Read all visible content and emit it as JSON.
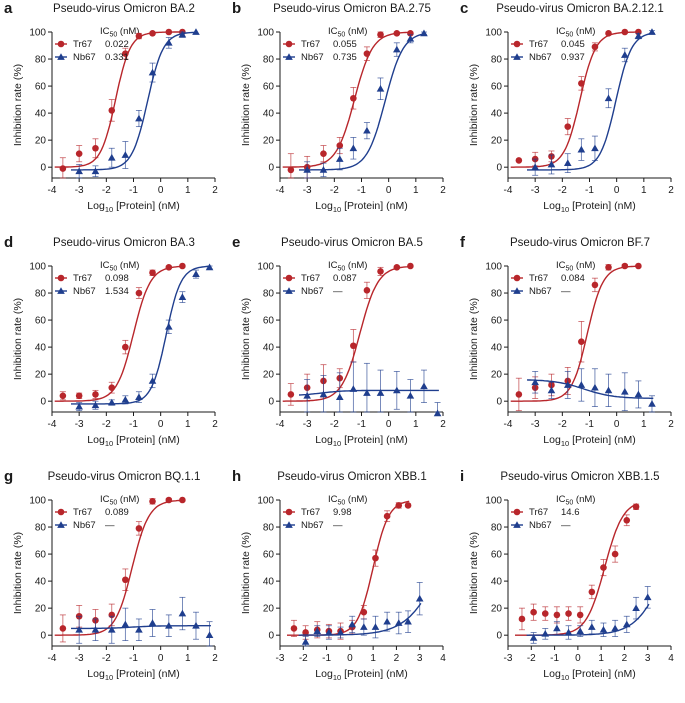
{
  "colors": {
    "tr67": "#b8262b",
    "nb67": "#1f3e8e",
    "axis": "#1a1a1a"
  },
  "chart_data": [
    {
      "letter": "a",
      "type": "scatter",
      "title": "Pseudo-virus Omicron BA.2",
      "xlabel": "Log10 [Protein] (nM)",
      "ylabel": "Inhibition rate (%)",
      "xlim": [
        -4,
        2
      ],
      "ylim": [
        -8,
        100
      ],
      "xticks": [
        -4,
        -3,
        -2,
        -1,
        0,
        1,
        2
      ],
      "yticks": [
        0,
        20,
        40,
        60,
        80,
        100
      ],
      "legend_header": "IC50 (nM)",
      "series": [
        {
          "name": "Tr67",
          "ic50": "0.022",
          "marker": "circle",
          "curve": {
            "bottom": 0,
            "top": 100,
            "logic50": -1.66,
            "hill": 1.6
          },
          "x": [
            -3.6,
            -3.0,
            -2.4,
            -1.8,
            -1.3,
            -0.8,
            -0.3,
            0.3,
            0.8
          ],
          "y": [
            -1,
            10,
            14,
            42,
            84,
            97,
            99,
            100,
            100
          ],
          "err": [
            8,
            6,
            7,
            8,
            4,
            2,
            1,
            0,
            0
          ]
        },
        {
          "name": "Nb67",
          "ic50": "0.331",
          "marker": "triangle",
          "curve": {
            "bottom": -2,
            "top": 100,
            "logic50": -0.48,
            "hill": 1.5
          },
          "x": [
            -3.0,
            -2.4,
            -1.8,
            -1.3,
            -0.8,
            -0.3,
            0.3,
            0.8,
            1.3
          ],
          "y": [
            -3,
            -3,
            7,
            9,
            36,
            70,
            92,
            98,
            100
          ],
          "err": [
            5,
            4,
            7,
            10,
            6,
            7,
            4,
            2,
            0
          ]
        }
      ]
    },
    {
      "letter": "b",
      "type": "scatter",
      "title": "Pseudo-virus Omicron BA.2.75",
      "xlabel": "Log10 [Protein] (nM)",
      "ylabel": "Inhibition rate (%)",
      "xlim": [
        -4,
        2
      ],
      "ylim": [
        -8,
        100
      ],
      "xticks": [
        -4,
        -3,
        -2,
        -1,
        0,
        1,
        2
      ],
      "yticks": [
        0,
        20,
        40,
        60,
        80,
        100
      ],
      "legend_header": "IC50 (nM)",
      "series": [
        {
          "name": "Tr67",
          "ic50": "0.055",
          "marker": "circle",
          "curve": {
            "bottom": 0,
            "top": 100,
            "logic50": -1.26,
            "hill": 1.3
          },
          "x": [
            -3.6,
            -3.0,
            -2.4,
            -1.8,
            -1.3,
            -0.8,
            -0.3,
            0.3,
            0.8
          ],
          "y": [
            -2,
            0,
            10,
            16,
            51,
            84,
            98,
            99,
            99
          ],
          "err": [
            12,
            8,
            6,
            6,
            8,
            5,
            2,
            1,
            1
          ]
        },
        {
          "name": "Nb67",
          "ic50": "0.735",
          "marker": "triangle",
          "curve": {
            "bottom": -2,
            "top": 100,
            "logic50": -0.13,
            "hill": 1.3
          },
          "x": [
            -3.0,
            -2.4,
            -1.8,
            -1.3,
            -0.8,
            -0.3,
            0.3,
            0.8,
            1.3
          ],
          "y": [
            -2,
            -2,
            6,
            14,
            27,
            58,
            87,
            95,
            99
          ],
          "err": [
            6,
            5,
            8,
            8,
            6,
            8,
            5,
            3,
            1
          ]
        }
      ]
    },
    {
      "letter": "c",
      "type": "scatter",
      "title": "Pseudo-virus Omicron BA.2.12.1",
      "xlabel": "Log10 [Protein] (nM)",
      "ylabel": "Inhibition rate (%)",
      "xlim": [
        -4,
        2
      ],
      "ylim": [
        -8,
        100
      ],
      "xticks": [
        -4,
        -3,
        -2,
        -1,
        0,
        1,
        2
      ],
      "yticks": [
        0,
        20,
        40,
        60,
        80,
        100
      ],
      "legend_header": "IC50 (nM)",
      "series": [
        {
          "name": "Tr67",
          "ic50": "0.045",
          "marker": "circle",
          "curve": {
            "bottom": 0,
            "top": 100,
            "logic50": -1.35,
            "hill": 1.5
          },
          "x": [
            -3.6,
            -3.0,
            -2.4,
            -1.8,
            -1.3,
            -0.8,
            -0.3,
            0.3,
            0.8
          ],
          "y": [
            5,
            6,
            8,
            30,
            62,
            89,
            99,
            100,
            100
          ],
          "err": [
            0,
            5,
            4,
            6,
            5,
            3,
            1,
            0,
            0
          ]
        },
        {
          "name": "Nb67",
          "ic50": "0.937",
          "marker": "triangle",
          "curve": {
            "bottom": -2,
            "top": 100,
            "logic50": -0.03,
            "hill": 1.5
          },
          "x": [
            -3.0,
            -2.4,
            -1.8,
            -1.3,
            -0.8,
            -0.3,
            0.3,
            0.8,
            1.3
          ],
          "y": [
            0,
            2,
            3,
            13,
            14,
            51,
            83,
            97,
            100
          ],
          "err": [
            6,
            7,
            7,
            8,
            9,
            7,
            5,
            2,
            1
          ]
        }
      ]
    },
    {
      "letter": "d",
      "type": "scatter",
      "title": "Pseudo-virus Omicron BA.3",
      "xlabel": "Log10 [Protein] (nM)",
      "ylabel": "Inhibition rate (%)",
      "xlim": [
        -4,
        2
      ],
      "ylim": [
        -8,
        100
      ],
      "xticks": [
        -4,
        -3,
        -2,
        -1,
        0,
        1,
        2
      ],
      "yticks": [
        0,
        20,
        40,
        60,
        80,
        100
      ],
      "legend_header": "IC50 (nM)",
      "series": [
        {
          "name": "Tr67",
          "ic50": "0.098",
          "marker": "circle",
          "curve": {
            "bottom": 0,
            "top": 100,
            "logic50": -1.0,
            "hill": 1.4
          },
          "x": [
            -3.6,
            -3.0,
            -2.4,
            -1.8,
            -1.3,
            -0.8,
            -0.3,
            0.3,
            0.8
          ],
          "y": [
            4,
            4,
            5,
            10,
            40,
            80,
            95,
            99,
            100
          ],
          "err": [
            3,
            2,
            3,
            4,
            5,
            4,
            2,
            1,
            0
          ]
        },
        {
          "name": "Nb67",
          "ic50": "1.534",
          "marker": "triangle",
          "curve": {
            "bottom": -2,
            "top": 100,
            "logic50": 0.2,
            "hill": 1.6
          },
          "x": [
            -3.0,
            -2.4,
            -1.8,
            -1.3,
            -0.8,
            -0.3,
            0.3,
            0.8,
            1.3,
            1.8
          ],
          "y": [
            -4,
            -3,
            -1,
            1,
            3,
            15,
            55,
            77,
            94,
            99
          ],
          "err": [
            3,
            3,
            2,
            3,
            4,
            5,
            5,
            4,
            3,
            1
          ]
        }
      ]
    },
    {
      "letter": "e",
      "type": "scatter",
      "title": "Pseudo-virus Omicron BA.5",
      "xlabel": "Log10 [Protein] (nM)",
      "ylabel": "Inhibition rate (%)",
      "xlim": [
        -4,
        2
      ],
      "ylim": [
        -8,
        100
      ],
      "xticks": [
        -4,
        -3,
        -2,
        -1,
        0,
        1,
        2
      ],
      "yticks": [
        0,
        20,
        40,
        60,
        80,
        100
      ],
      "legend_header": "IC50 (nM)",
      "series": [
        {
          "name": "Tr67",
          "ic50": "0.087",
          "marker": "circle",
          "curve": {
            "bottom": 0,
            "top": 100,
            "logic50": -1.06,
            "hill": 1.3
          },
          "x": [
            -3.6,
            -3.0,
            -2.4,
            -1.8,
            -1.3,
            -0.8,
            -0.3,
            0.3,
            0.8
          ],
          "y": [
            5,
            10,
            15,
            17,
            41,
            82,
            96,
            99,
            100
          ],
          "err": [
            8,
            10,
            12,
            7,
            12,
            6,
            3,
            1,
            0
          ]
        },
        {
          "name": "Nb67",
          "ic50": "—",
          "marker": "triangle",
          "curve": {
            "bottom": 4,
            "top": 8,
            "logic50": -2.5,
            "hill": 1.0
          },
          "x": [
            -3.0,
            -2.4,
            -1.8,
            -1.3,
            -0.8,
            -0.3,
            0.3,
            0.8,
            1.3,
            1.8
          ],
          "y": [
            4,
            5,
            3,
            9,
            6,
            6,
            8,
            4,
            11,
            -9
          ],
          "err": [
            12,
            14,
            18,
            20,
            22,
            17,
            14,
            12,
            12,
            8
          ]
        }
      ]
    },
    {
      "letter": "f",
      "type": "scatter",
      "title": "Pseudo-virus Omicron BF.7",
      "xlabel": "Log10 [Protein] (nM)",
      "ylabel": "Inhibition rate (%)",
      "xlim": [
        -4,
        2
      ],
      "ylim": [
        -8,
        100
      ],
      "xticks": [
        -4,
        -3,
        -2,
        -1,
        0,
        1,
        2
      ],
      "yticks": [
        0,
        20,
        40,
        60,
        80,
        100
      ],
      "legend_header": "IC50 (nM)",
      "series": [
        {
          "name": "Tr67",
          "ic50": "0.084",
          "marker": "circle",
          "curve": {
            "bottom": 0,
            "top": 100,
            "logic50": -1.08,
            "hill": 1.5
          },
          "x": [
            -3.6,
            -3.0,
            -2.4,
            -1.8,
            -1.3,
            -0.8,
            -0.3,
            0.3,
            0.8
          ],
          "y": [
            5,
            10,
            12,
            15,
            44,
            86,
            99,
            100,
            100
          ],
          "err": [
            12,
            8,
            8,
            10,
            15,
            5,
            2,
            1,
            0
          ]
        },
        {
          "name": "Nb67",
          "ic50": "—",
          "marker": "triangle",
          "curve": {
            "bottom": 2,
            "top": 16,
            "logic50": -1.2,
            "hill": -0.8
          },
          "x": [
            -3.0,
            -2.4,
            -1.8,
            -1.3,
            -0.8,
            -0.3,
            0.3,
            0.8,
            1.3
          ],
          "y": [
            14,
            8,
            12,
            12,
            10,
            8,
            7,
            5,
            -2
          ],
          "err": [
            8,
            6,
            10,
            12,
            14,
            12,
            14,
            10,
            6
          ]
        }
      ]
    },
    {
      "letter": "g",
      "type": "scatter",
      "title": "Pseudo-virus Omicron BQ.1.1",
      "xlabel": "Log10 [Protein] (nM)",
      "ylabel": "Inhibition rate (%)",
      "xlim": [
        -4,
        2
      ],
      "ylim": [
        -8,
        100
      ],
      "xticks": [
        -4,
        -3,
        -2,
        -1,
        0,
        1,
        2
      ],
      "yticks": [
        0,
        20,
        40,
        60,
        80,
        100
      ],
      "legend_header": "IC50 (nM)",
      "series": [
        {
          "name": "Tr67",
          "ic50": "0.089",
          "marker": "circle",
          "curve": {
            "bottom": 0,
            "top": 100,
            "logic50": -1.05,
            "hill": 1.4
          },
          "x": [
            -3.6,
            -3.0,
            -2.4,
            -1.8,
            -1.3,
            -0.8,
            -0.3,
            0.3,
            0.8
          ],
          "y": [
            5,
            14,
            11,
            15,
            41,
            79,
            99,
            100,
            100
          ],
          "err": [
            10,
            8,
            8,
            8,
            8,
            5,
            2,
            1,
            0
          ]
        },
        {
          "name": "Nb67",
          "ic50": "—",
          "marker": "triangle",
          "curve": {
            "bottom": 5,
            "top": 7,
            "logic50": -1.0,
            "hill": 1.0
          },
          "x": [
            -3.0,
            -2.4,
            -1.8,
            -1.3,
            -0.8,
            -0.3,
            0.3,
            0.8,
            1.3,
            1.8
          ],
          "y": [
            4,
            4,
            4,
            8,
            4,
            9,
            7,
            16,
            7,
            0
          ],
          "err": [
            10,
            8,
            10,
            12,
            8,
            10,
            8,
            12,
            10,
            10
          ]
        }
      ]
    },
    {
      "letter": "h",
      "type": "scatter",
      "title": "Pseudo-virus Omicron XBB.1",
      "xlabel": "Log10 [Protein] (nM)",
      "ylabel": "Inhibition rate (%)",
      "xlim": [
        -3,
        4
      ],
      "ylim": [
        -8,
        100
      ],
      "xticks": [
        -3,
        -2,
        -1,
        0,
        1,
        2,
        3,
        4
      ],
      "yticks": [
        0,
        20,
        40,
        60,
        80,
        100
      ],
      "legend_header": "IC50 (nM)",
      "series": [
        {
          "name": "Tr67",
          "ic50": "9.98",
          "marker": "circle",
          "curve": {
            "bottom": 0,
            "top": 100,
            "logic50": 1.0,
            "hill": 1.3
          },
          "x": [
            -2.4,
            -1.9,
            -1.4,
            -0.9,
            -0.4,
            0.1,
            0.6,
            1.1,
            1.6,
            2.1,
            2.5
          ],
          "y": [
            5,
            2,
            4,
            3,
            3,
            6,
            17,
            57,
            88,
            96,
            96
          ],
          "err": [
            6,
            5,
            6,
            5,
            6,
            5,
            5,
            6,
            4,
            2,
            1
          ]
        },
        {
          "name": "Nb67",
          "ic50": "—",
          "marker": "triangle",
          "curve": {
            "bottom": 0,
            "top": 100,
            "logic50": 3.9,
            "hill": 0.6
          },
          "x": [
            -1.9,
            -1.4,
            -0.9,
            -0.4,
            0.1,
            0.6,
            1.1,
            1.6,
            2.1,
            2.5,
            3.0
          ],
          "y": [
            -5,
            3,
            2,
            2,
            8,
            6,
            6,
            10,
            9,
            10,
            27
          ],
          "err": [
            4,
            4,
            5,
            4,
            6,
            6,
            8,
            7,
            8,
            8,
            12
          ]
        }
      ]
    },
    {
      "letter": "i",
      "type": "scatter",
      "title": "Pseudo-virus Omicron XBB.1.5",
      "xlabel": "Log10 [Protein] (nM)",
      "ylabel": "Inhibition rate (%)",
      "xlim": [
        -3,
        4
      ],
      "ylim": [
        -8,
        100
      ],
      "xticks": [
        -3,
        -2,
        -1,
        0,
        1,
        2,
        3,
        4
      ],
      "yticks": [
        0,
        20,
        40,
        60,
        80,
        100
      ],
      "legend_header": "IC50 (nM)",
      "series": [
        {
          "name": "Tr67",
          "ic50": "14.6",
          "marker": "circle",
          "curve": {
            "bottom": 0,
            "top": 100,
            "logic50": 1.15,
            "hill": 1.1
          },
          "x": [
            -2.4,
            -1.9,
            -1.4,
            -0.9,
            -0.4,
            0.1,
            0.6,
            1.1,
            1.6,
            2.1,
            2.5
          ],
          "y": [
            12,
            17,
            16,
            15,
            16,
            15,
            32,
            50,
            60,
            85,
            95
          ],
          "err": [
            8,
            6,
            5,
            6,
            5,
            6,
            5,
            6,
            6,
            4,
            2
          ]
        },
        {
          "name": "Nb67",
          "ic50": "—",
          "marker": "triangle",
          "curve": {
            "bottom": 0,
            "top": 100,
            "logic50": 3.8,
            "hill": 0.7
          },
          "x": [
            -1.9,
            -1.4,
            -0.9,
            -0.4,
            0.1,
            0.6,
            1.1,
            1.6,
            2.1,
            2.5,
            3.0
          ],
          "y": [
            -2,
            1,
            5,
            2,
            3,
            6,
            4,
            5,
            8,
            20,
            28
          ],
          "err": [
            4,
            4,
            5,
            5,
            4,
            5,
            5,
            6,
            6,
            8,
            8
          ]
        }
      ]
    }
  ]
}
